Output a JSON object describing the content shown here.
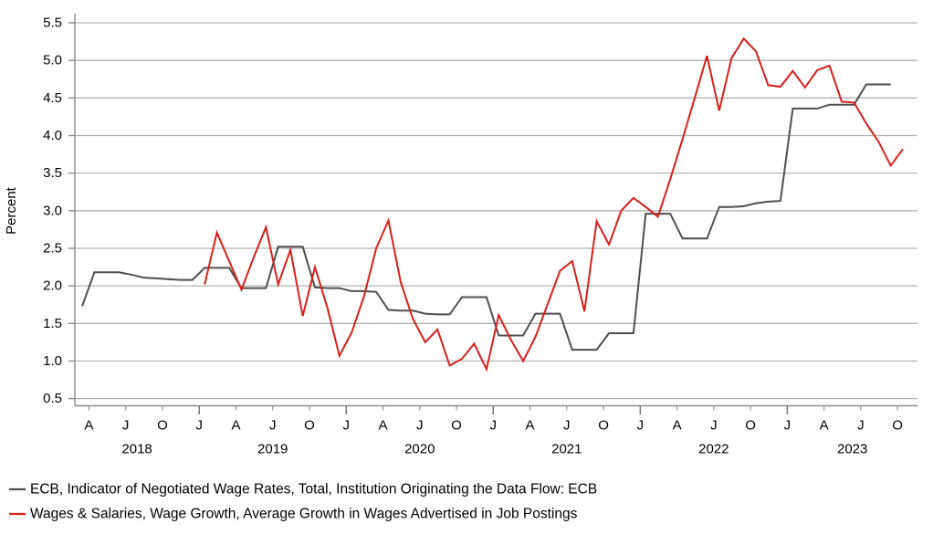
{
  "chart_data": {
    "type": "line",
    "ylabel": "Percent",
    "ylim": [
      0.5,
      5.5
    ],
    "y_ticks": [
      0.5,
      1.0,
      1.5,
      2.0,
      2.5,
      3.0,
      3.5,
      4.0,
      4.5,
      5.0,
      5.5
    ],
    "grid": "horizontal",
    "legend_position": "bottom-left",
    "x_axis": {
      "start_month": "2018-03",
      "end_month": "2023-10",
      "month_letters": {
        "1": "J",
        "4": "A",
        "7": "J",
        "10": "O"
      },
      "years": [
        "2018",
        "2019",
        "2020",
        "2021",
        "2022",
        "2023"
      ]
    },
    "colors": {
      "gridline": "#b3b3b3",
      "axis": "#8a8a8a",
      "minor_tick": "#999999",
      "year_tick": "#6e6e6e",
      "text": "#000000"
    },
    "series": [
      {
        "id": "ecb-negotiated-wages",
        "name": "ECB, Indicator of Negotiated Wage Rates, Total, Institution Originating the Data Flow: ECB",
        "color": "#4f4f4f",
        "start_month": "2018-03",
        "values": [
          1.73,
          2.18,
          2.18,
          2.18,
          2.15,
          2.11,
          2.1,
          2.09,
          2.08,
          2.08,
          2.24,
          2.24,
          2.24,
          1.97,
          1.97,
          1.97,
          2.52,
          2.52,
          2.52,
          1.98,
          1.97,
          1.97,
          1.93,
          1.93,
          1.92,
          1.68,
          1.67,
          1.67,
          1.63,
          1.62,
          1.62,
          1.85,
          1.85,
          1.85,
          1.34,
          1.34,
          1.34,
          1.63,
          1.63,
          1.63,
          1.15,
          1.15,
          1.15,
          1.37,
          1.37,
          1.37,
          2.96,
          2.96,
          2.96,
          2.63,
          2.63,
          2.63,
          3.05,
          3.05,
          3.06,
          3.1,
          3.12,
          3.13,
          4.36,
          4.36,
          4.36,
          4.41,
          4.41,
          4.41,
          4.68,
          4.68,
          4.68
        ]
      },
      {
        "id": "wages-advertised-job-postings",
        "name": "Wages & Salaries, Wage Growth, Average Growth in Wages Advertised in Job Postings",
        "color": "#d7201d",
        "start_month": "2019-01",
        "values": [
          2.02,
          2.71,
          2.33,
          1.95,
          2.38,
          2.78,
          2.02,
          2.48,
          1.6,
          2.25,
          1.72,
          1.07,
          1.38,
          1.86,
          2.5,
          2.87,
          2.05,
          1.56,
          1.25,
          1.42,
          0.94,
          1.03,
          1.23,
          0.89,
          1.61,
          1.28,
          1.0,
          1.32,
          1.76,
          2.2,
          2.33,
          1.66,
          2.86,
          2.55,
          3.0,
          3.17,
          3.05,
          2.92,
          3.42,
          3.95,
          4.5,
          5.06,
          4.33,
          5.03,
          5.29,
          5.12,
          4.67,
          4.65,
          4.86,
          4.64,
          4.87,
          4.93,
          4.45,
          4.44,
          4.16,
          3.92,
          3.6,
          3.82
        ]
      }
    ]
  }
}
